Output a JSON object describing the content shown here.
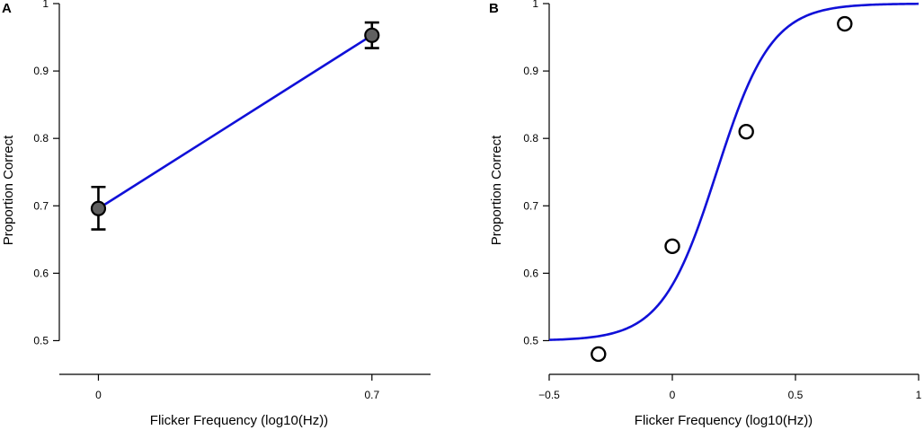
{
  "chart_data": [
    {
      "panel": "A",
      "type": "line",
      "xlabel": "Flicker Frequency (log10(Hz))",
      "ylabel": "Proportion Correct",
      "xlim": [
        -0.1,
        0.85
      ],
      "ylim": [
        0.45,
        1.0
      ],
      "x_ticks": [
        0,
        0.7
      ],
      "x_tick_labels": [
        "0",
        "0.7"
      ],
      "y_ticks": [
        0.5,
        0.6,
        0.7,
        0.8,
        0.9,
        1.0
      ],
      "y_tick_labels": [
        "0.5",
        "0.6",
        "0.7",
        "0.8",
        "0.9",
        "1"
      ],
      "grid": false,
      "line_color": "#1010d8",
      "marker_fill": "#606060",
      "points": [
        {
          "x": 0,
          "y": 0.696,
          "err_low": 0.665,
          "err_high": 0.728
        },
        {
          "x": 0.7,
          "y": 0.953,
          "err_low": 0.934,
          "err_high": 0.972
        }
      ]
    },
    {
      "panel": "B",
      "type": "scatter",
      "xlabel": "Flicker Frequency (log10(Hz))",
      "ylabel": "Proportion Correct",
      "xlim": [
        -0.5,
        1.0
      ],
      "ylim": [
        0.45,
        1.0
      ],
      "x_ticks": [
        -0.5,
        0,
        0.5,
        1
      ],
      "x_tick_labels": [
        "−0.5",
        "0",
        "0.5",
        "1"
      ],
      "y_ticks": [
        0.5,
        0.6,
        0.7,
        0.8,
        0.9,
        1.0
      ],
      "y_tick_labels": [
        "0.5",
        "0.6",
        "0.7",
        "0.8",
        "0.9",
        "1"
      ],
      "grid": false,
      "line_color": "#1010d8",
      "marker_fill": "#ffffff",
      "points": [
        {
          "x": -0.3,
          "y": 0.48
        },
        {
          "x": 0,
          "y": 0.64
        },
        {
          "x": 0.3,
          "y": 0.81
        },
        {
          "x": 0.7,
          "y": 0.97
        }
      ],
      "fit": {
        "type": "logistic",
        "floor": 0.5,
        "ceiling": 1.0,
        "midpoint": 0.18,
        "slope": 9.0
      }
    }
  ]
}
